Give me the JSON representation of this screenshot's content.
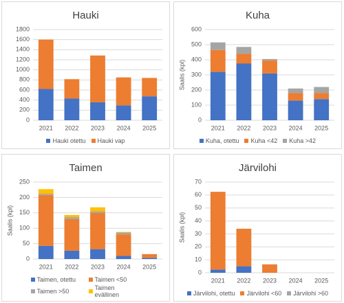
{
  "chart_data": [
    {
      "type": "bar",
      "stacked": true,
      "title": "Hauki",
      "categories": [
        "2021",
        "2022",
        "2023",
        "2024",
        "2025"
      ],
      "ylim": [
        0,
        1800
      ],
      "yticks": [
        0,
        200,
        400,
        600,
        800,
        1000,
        1200,
        1400,
        1600,
        1800
      ],
      "grid": true,
      "series": [
        {
          "name": "Hauki otettu",
          "color": "#4472c4",
          "values": [
            620,
            430,
            355,
            295,
            475
          ]
        },
        {
          "name": "Hauki vap",
          "color": "#ed7d31",
          "values": [
            980,
            385,
            930,
            555,
            365
          ]
        }
      ]
    },
    {
      "type": "bar",
      "stacked": true,
      "title": "Kuha",
      "ylabel": "Saalis (kpl)",
      "categories": [
        "2021",
        "2022",
        "2023",
        "2024",
        "2025"
      ],
      "ylim": [
        0,
        600
      ],
      "yticks": [
        0,
        100,
        200,
        300,
        400,
        500,
        600
      ],
      "grid": true,
      "series": [
        {
          "name": "Kuha, otettu",
          "color": "#4472c4",
          "values": [
            320,
            375,
            310,
            130,
            140
          ]
        },
        {
          "name": "Kuha <42",
          "color": "#ed7d31",
          "values": [
            145,
            65,
            85,
            50,
            40
          ]
        },
        {
          "name": "Kuha >42",
          "color": "#a5a5a5",
          "values": [
            50,
            45,
            10,
            30,
            40
          ]
        }
      ]
    },
    {
      "type": "bar",
      "stacked": true,
      "title": "Taimen",
      "ylabel": "Saalis (kpl)",
      "categories": [
        "2021",
        "2022",
        "2023",
        "2024",
        "2025"
      ],
      "ylim": [
        0,
        250
      ],
      "yticks": [
        0,
        50,
        100,
        150,
        200,
        250
      ],
      "grid": true,
      "series": [
        {
          "name": "Taimen, otettu",
          "color": "#4472c4",
          "values": [
            43,
            27,
            32,
            10,
            4
          ]
        },
        {
          "name": "Taimen <50",
          "color": "#ed7d31",
          "values": [
            165,
            103,
            118,
            70,
            12
          ]
        },
        {
          "name": "Taimen >50",
          "color": "#a5a5a5",
          "values": [
            4,
            6,
            5,
            6,
            0
          ]
        },
        {
          "name": "Taimen evällinen",
          "color": "#ffc000",
          "values": [
            15,
            7,
            13,
            2,
            0
          ]
        }
      ]
    },
    {
      "type": "bar",
      "stacked": true,
      "title": "Järvilohi",
      "ylabel": "Saalis (kpl)",
      "categories": [
        "2021",
        "2022",
        "2023",
        "2024",
        "2025"
      ],
      "ylim": [
        0,
        70
      ],
      "yticks": [
        0,
        10,
        20,
        30,
        40,
        50,
        60,
        70
      ],
      "grid": true,
      "series": [
        {
          "name": "Järvilohi, otettu",
          "color": "#4472c4",
          "values": [
            2.5,
            5,
            0,
            0,
            0
          ]
        },
        {
          "name": "Järvilohi <60",
          "color": "#ed7d31",
          "values": [
            60,
            29,
            6.5,
            0,
            0
          ]
        },
        {
          "name": "Järvilohi >60",
          "color": "#a5a5a5",
          "values": [
            0,
            0,
            0,
            0,
            0
          ]
        }
      ]
    }
  ]
}
